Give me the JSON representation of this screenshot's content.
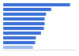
{
  "chart_data": {
    "type": "bar",
    "orientation": "horizontal",
    "categories": [
      null,
      null,
      null,
      null,
      null,
      null,
      null,
      null,
      null,
      null
    ],
    "values": [
      92,
      66,
      59,
      57,
      57,
      56,
      52,
      45,
      44,
      41
    ],
    "colors": [
      "#3a6fd8",
      "#3a6fd8",
      "#3a6fd8",
      "#3a6fd8",
      "#3a6fd8",
      "#3a6fd8",
      "#3a6fd8",
      "#3a6fd8",
      "#3a6fd8",
      "#9bbcf0"
    ],
    "xlim": [
      0,
      100
    ],
    "grid": false,
    "tick_labels": false
  }
}
